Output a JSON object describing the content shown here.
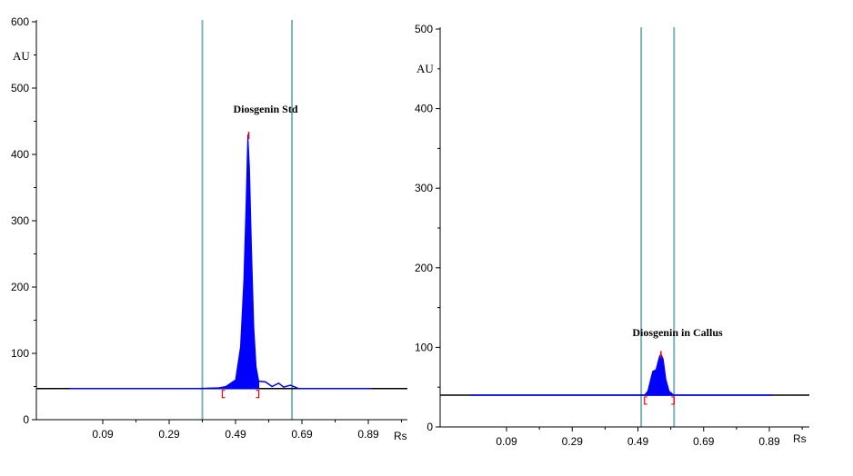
{
  "colors": {
    "trace": "#0000ff",
    "peak_fill": "#0000ff",
    "marker_line": "#7fb2b2",
    "peak_marker": "#ff0000",
    "baseline": "#000000"
  },
  "chart_data": [
    {
      "type": "area",
      "title": "",
      "xlabel": "Rs",
      "ylabel": "AU",
      "xlim": [
        -0.09,
        1.0
      ],
      "ylim": [
        0,
        600
      ],
      "x_ticks": [
        "0.09",
        "0.29",
        "0.49",
        "0.69",
        "0.89"
      ],
      "y_ticks": [
        "0",
        "100",
        "200",
        "300",
        "400",
        "500",
        "600"
      ],
      "y_tick_values": [
        0,
        100,
        200,
        300,
        400,
        500,
        600
      ],
      "grid": false,
      "baseline_y": 47,
      "marker_lines_x": [
        0.39,
        0.66
      ],
      "annotation": "Diosgenin Std",
      "peak": {
        "x": 0.53,
        "start_x": 0.45,
        "end_x": 0.56,
        "series": [
          {
            "x": 0.43,
            "y": 47
          },
          {
            "x": 0.46,
            "y": 50
          },
          {
            "x": 0.49,
            "y": 60
          },
          {
            "x": 0.505,
            "y": 110
          },
          {
            "x": 0.515,
            "y": 210
          },
          {
            "x": 0.522,
            "y": 330
          },
          {
            "x": 0.527,
            "y": 430
          },
          {
            "x": 0.532,
            "y": 380
          },
          {
            "x": 0.538,
            "y": 260
          },
          {
            "x": 0.545,
            "y": 140
          },
          {
            "x": 0.552,
            "y": 80
          },
          {
            "x": 0.56,
            "y": 58
          }
        ]
      },
      "trace": [
        {
          "x": -0.01,
          "y": 47
        },
        {
          "x": 0.38,
          "y": 47
        },
        {
          "x": 0.44,
          "y": 48
        },
        {
          "x": 0.56,
          "y": 58
        },
        {
          "x": 0.58,
          "y": 57
        },
        {
          "x": 0.6,
          "y": 50
        },
        {
          "x": 0.62,
          "y": 55
        },
        {
          "x": 0.635,
          "y": 49
        },
        {
          "x": 0.655,
          "y": 52
        },
        {
          "x": 0.68,
          "y": 47
        },
        {
          "x": 0.9,
          "y": 47
        }
      ]
    },
    {
      "type": "area",
      "title": "",
      "xlabel": "Rs",
      "ylabel": "AU",
      "xlim": [
        -0.09,
        1.0
      ],
      "ylim": [
        0,
        500
      ],
      "x_ticks": [
        "0.09",
        "0.29",
        "0.49",
        "0.69",
        "0.89"
      ],
      "y_ticks": [
        "0",
        "100",
        "200",
        "300",
        "400",
        "500"
      ],
      "y_tick_values": [
        0,
        100,
        200,
        300,
        400,
        500
      ],
      "grid": false,
      "baseline_y": 40,
      "marker_lines_x": [
        0.5,
        0.6
      ],
      "annotation": "Diosgenin  in Callus",
      "peak": {
        "x": 0.56,
        "start_x": 0.51,
        "end_x": 0.6,
        "series": [
          {
            "x": 0.51,
            "y": 40
          },
          {
            "x": 0.52,
            "y": 45
          },
          {
            "x": 0.53,
            "y": 62
          },
          {
            "x": 0.535,
            "y": 70
          },
          {
            "x": 0.545,
            "y": 72
          },
          {
            "x": 0.555,
            "y": 88
          },
          {
            "x": 0.56,
            "y": 92
          },
          {
            "x": 0.567,
            "y": 85
          },
          {
            "x": 0.575,
            "y": 60
          },
          {
            "x": 0.585,
            "y": 45
          },
          {
            "x": 0.6,
            "y": 40
          }
        ]
      },
      "trace": [
        {
          "x": -0.02,
          "y": 40
        },
        {
          "x": 0.9,
          "y": 40
        }
      ]
    }
  ]
}
